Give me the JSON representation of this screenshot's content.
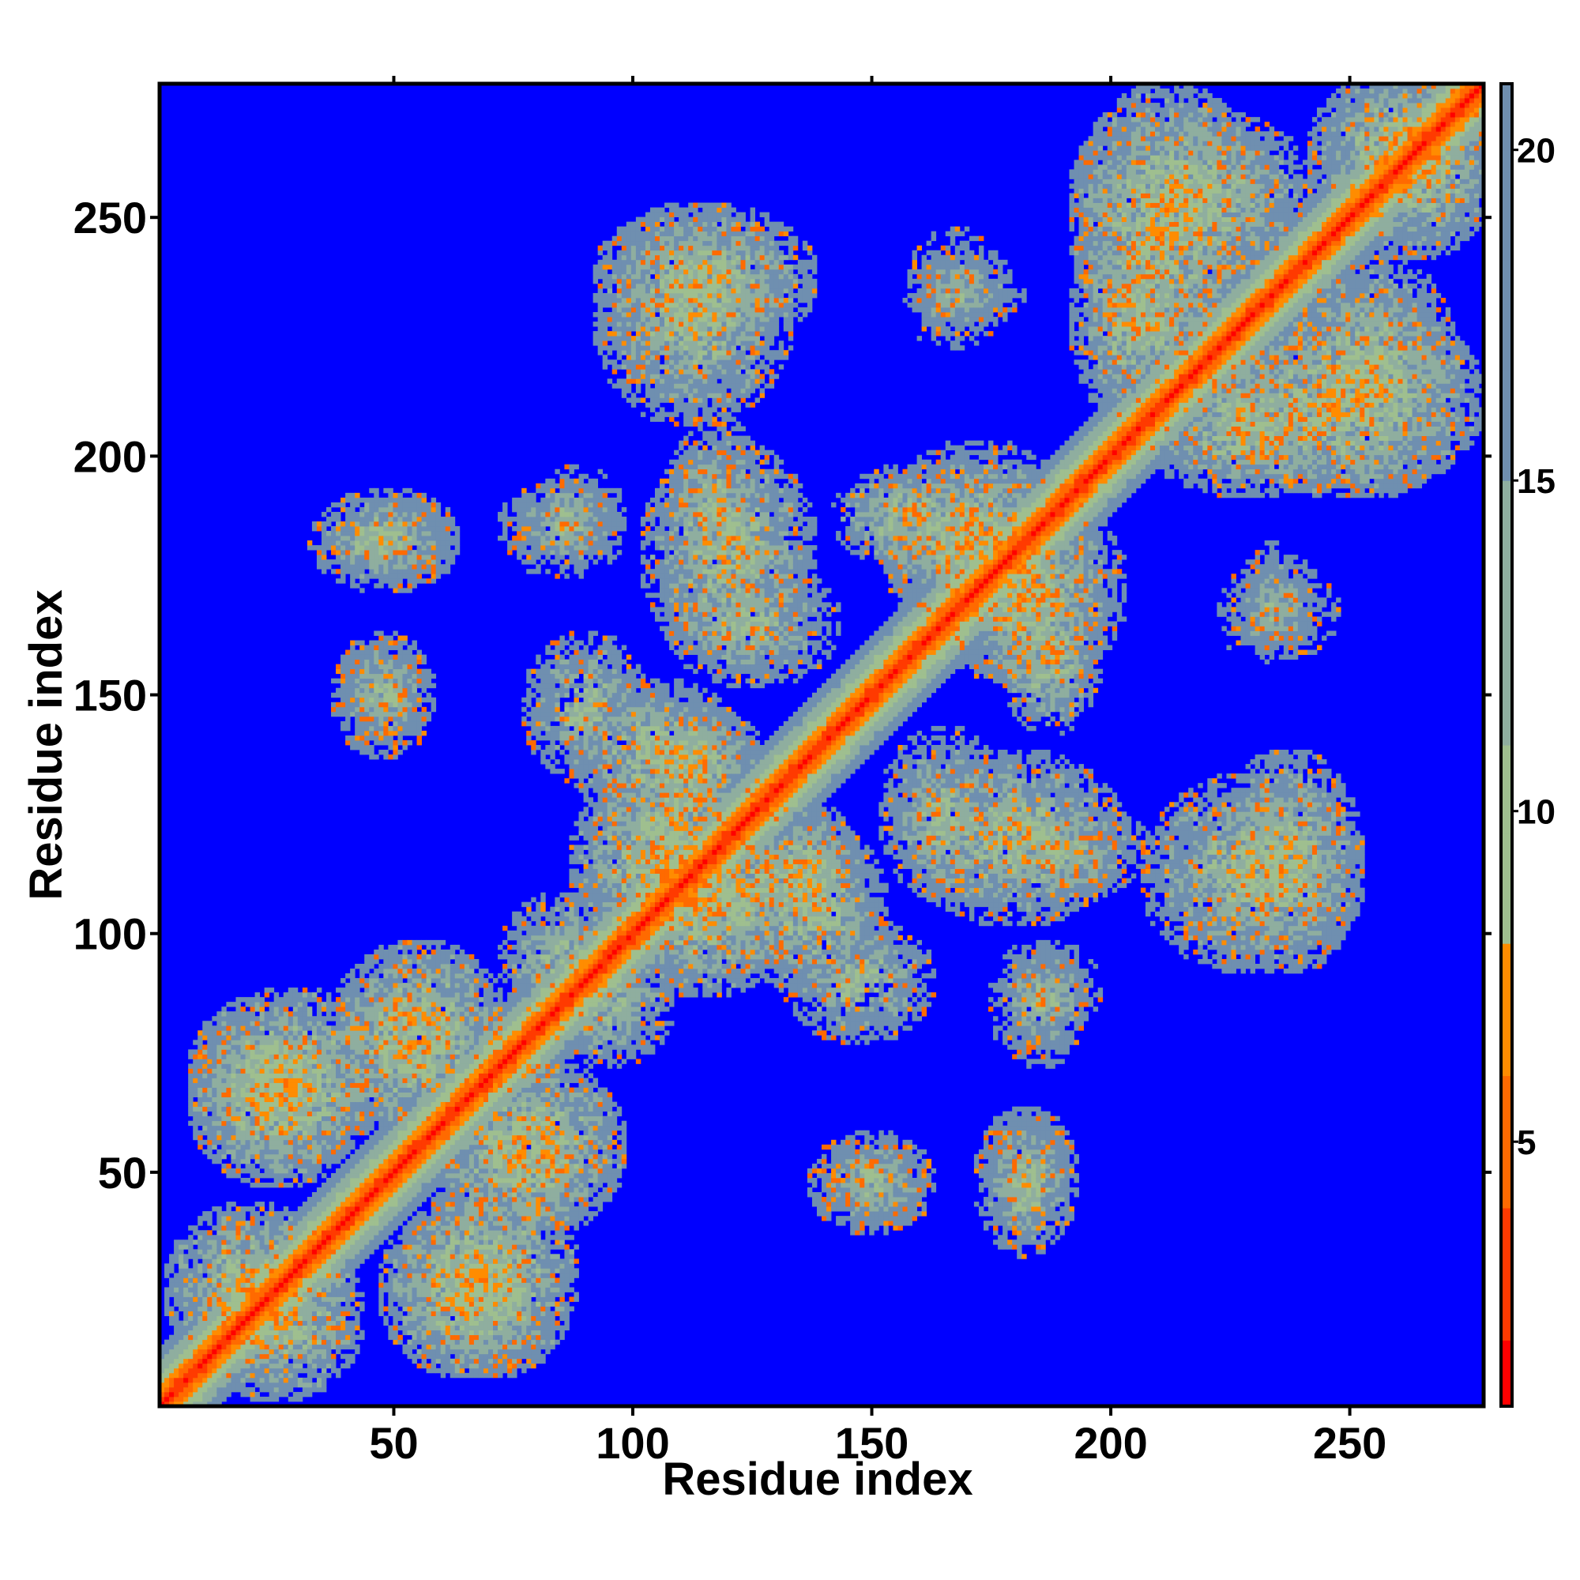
{
  "chart_data": {
    "type": "heatmap",
    "title": "",
    "xlabel": "Residue index",
    "ylabel": "Residue index",
    "n_residues": 278,
    "xlim": [
      1,
      278
    ],
    "ylim": [
      1,
      278
    ],
    "xticks": [
      50,
      100,
      150,
      200,
      250
    ],
    "yticks": [
      50,
      100,
      150,
      200,
      250
    ],
    "colorbar": {
      "ticks": [
        5,
        10,
        15,
        20
      ],
      "range": [
        1,
        21
      ],
      "colors": {
        "min": "#ff0000",
        "mid_low": "#ff8c00",
        "mid": "#9fbf8f",
        "high": "#6f8fb0",
        "background": "#0000ff"
      }
    },
    "value_meaning": "pairwise residue distance (values above 21 shown as background)",
    "diagonal": {
      "value_on_diagonal": 1,
      "band_halfwidth": 12
    },
    "contact_patches": [
      {
        "x": [
          5,
          35
        ],
        "y": [
          10,
          40
        ],
        "min_value": 8
      },
      {
        "x": [
          10,
          45
        ],
        "y": [
          55,
          85
        ],
        "min_value": 8
      },
      {
        "x": [
          50,
          80
        ],
        "y": [
          10,
          40
        ],
        "min_value": 8
      },
      {
        "x": [
          40,
          70
        ],
        "y": [
          65,
          95
        ],
        "min_value": 8
      },
      {
        "x": [
          60,
          90
        ],
        "y": [
          40,
          65
        ],
        "min_value": 9
      },
      {
        "x": [
          85,
          105
        ],
        "y": [
          75,
          95
        ],
        "min_value": 10
      },
      {
        "x": [
          90,
          120
        ],
        "y": [
          100,
          130
        ],
        "min_value": 8
      },
      {
        "x": [
          110,
          135
        ],
        "y": [
          95,
          120
        ],
        "min_value": 9
      },
      {
        "x": [
          80,
          100
        ],
        "y": [
          135,
          160
        ],
        "min_value": 10
      },
      {
        "x": [
          100,
          125
        ],
        "y": [
          125,
          145
        ],
        "min_value": 9
      },
      {
        "x": [
          125,
          150
        ],
        "y": [
          90,
          120
        ],
        "min_value": 9
      },
      {
        "x": [
          40,
          55
        ],
        "y": [
          140,
          160
        ],
        "min_value": 11
      },
      {
        "x": [
          35,
          60
        ],
        "y": [
          175,
          190
        ],
        "min_value": 10
      },
      {
        "x": [
          75,
          95
        ],
        "y": [
          178,
          192
        ],
        "min_value": 11
      },
      {
        "x": [
          105,
          135
        ],
        "y": [
          160,
          200
        ],
        "min_value": 9
      },
      {
        "x": [
          145,
          170
        ],
        "y": [
          180,
          195
        ],
        "min_value": 9
      },
      {
        "x": [
          155,
          190
        ],
        "y": [
          165,
          200
        ],
        "min_value": 9
      },
      {
        "x": [
          170,
          195
        ],
        "y": [
          155,
          185
        ],
        "min_value": 9
      },
      {
        "x": [
          155,
          175
        ],
        "y": [
          110,
          140
        ],
        "min_value": 10
      },
      {
        "x": [
          175,
          205
        ],
        "y": [
          110,
          125
        ],
        "min_value": 10
      },
      {
        "x": [
          180,
          195
        ],
        "y": [
          80,
          95
        ],
        "min_value": 11
      },
      {
        "x": [
          140,
          160
        ],
        "y": [
          40,
          55
        ],
        "min_value": 11
      },
      {
        "x": [
          175,
          190
        ],
        "y": [
          40,
          60
        ],
        "min_value": 11
      },
      {
        "x": [
          95,
          135
        ],
        "y": [
          225,
          250
        ],
        "min_value": 9
      },
      {
        "x": [
          160,
          180
        ],
        "y": [
          230,
          240
        ],
        "min_value": 12
      },
      {
        "x": [
          210,
          250
        ],
        "y": [
          95,
          130
        ],
        "min_value": 9
      },
      {
        "x": [
          225,
          245
        ],
        "y": [
          160,
          175
        ],
        "min_value": 12
      },
      {
        "x": [
          195,
          230
        ],
        "y": [
          225,
          275
        ],
        "min_value": 8
      },
      {
        "x": [
          210,
          250
        ],
        "y": [
          195,
          215
        ],
        "min_value": 9
      },
      {
        "x": [
          240,
          270
        ],
        "y": [
          195,
          240
        ],
        "min_value": 9
      },
      {
        "x": [
          250,
          278
        ],
        "y": [
          245,
          278
        ],
        "min_value": 8
      },
      {
        "x": [
          200,
          220
        ],
        "y": [
          215,
          240
        ],
        "min_value": 10
      }
    ]
  }
}
